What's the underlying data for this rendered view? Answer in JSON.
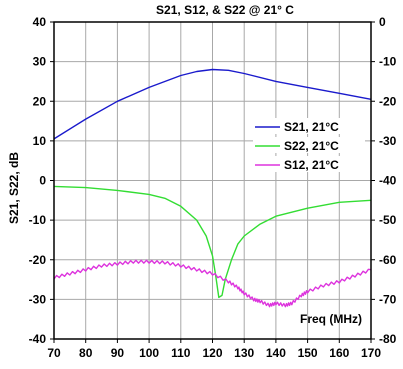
{
  "chart_data": {
    "type": "line",
    "title": "S21, S12, & S22 @ 21° C",
    "xlabel": "Freq (MHz)",
    "ylabel": "S21, S22, dB",
    "xlim": [
      70,
      170
    ],
    "ylim_left": [
      -40,
      40
    ],
    "ylim_right": [
      -80,
      0
    ],
    "x_ticks": [
      "70",
      "80",
      "90",
      "100",
      "110",
      "120",
      "130",
      "140",
      "150",
      "160",
      "170"
    ],
    "y_left_ticks": [
      "40",
      "30",
      "20",
      "10",
      "0",
      "-10",
      "-20",
      "-30",
      "-40"
    ],
    "y_right_ticks": [
      "0",
      "-10",
      "-20",
      "-30",
      "-40",
      "-50",
      "-60",
      "-70",
      "-80"
    ],
    "grid": true,
    "legend_position": "right",
    "colors": {
      "s21": "#1a1acc",
      "s22": "#33dd33",
      "s12": "#dd33dd",
      "grid": "#a8a8a8"
    },
    "series": [
      {
        "name": "S21, 21°C",
        "axis": "left",
        "x": [
          70,
          80,
          90,
          100,
          110,
          115,
          120,
          125,
          130,
          140,
          150,
          160,
          170
        ],
        "y": [
          10.5,
          15.5,
          20,
          23.5,
          26.5,
          27.5,
          28,
          27.8,
          27,
          25,
          23.5,
          22,
          20.5
        ]
      },
      {
        "name": "S22, 21°C",
        "axis": "left",
        "x": [
          70,
          80,
          90,
          100,
          105,
          110,
          115,
          118,
          120,
          121,
          122,
          123,
          124,
          126,
          128,
          130,
          135,
          140,
          150,
          160,
          170
        ],
        "y": [
          -1.5,
          -1.8,
          -2.5,
          -3.5,
          -4.5,
          -6.5,
          -10,
          -14,
          -19,
          -24,
          -29.5,
          -29,
          -25,
          -20,
          -16,
          -14,
          -11,
          -9,
          -7,
          -5.5,
          -5
        ]
      },
      {
        "name": "S12, 21°C",
        "axis": "left",
        "x": [
          70,
          75,
          80,
          85,
          90,
          95,
          100,
          105,
          110,
          115,
          120,
          125,
          128,
          130,
          133,
          135,
          138,
          140,
          143,
          145,
          148,
          150,
          155,
          160,
          165,
          170
        ],
        "y": [
          -24.5,
          -23.5,
          -22.5,
          -21.5,
          -21,
          -20.5,
          -20.5,
          -20.7,
          -21.5,
          -22.5,
          -23.5,
          -25.5,
          -27,
          -28.5,
          -30,
          -30.5,
          -31.5,
          -31,
          -31.5,
          -31,
          -29,
          -28,
          -26.5,
          -25.5,
          -24,
          -22.5
        ]
      }
    ]
  }
}
